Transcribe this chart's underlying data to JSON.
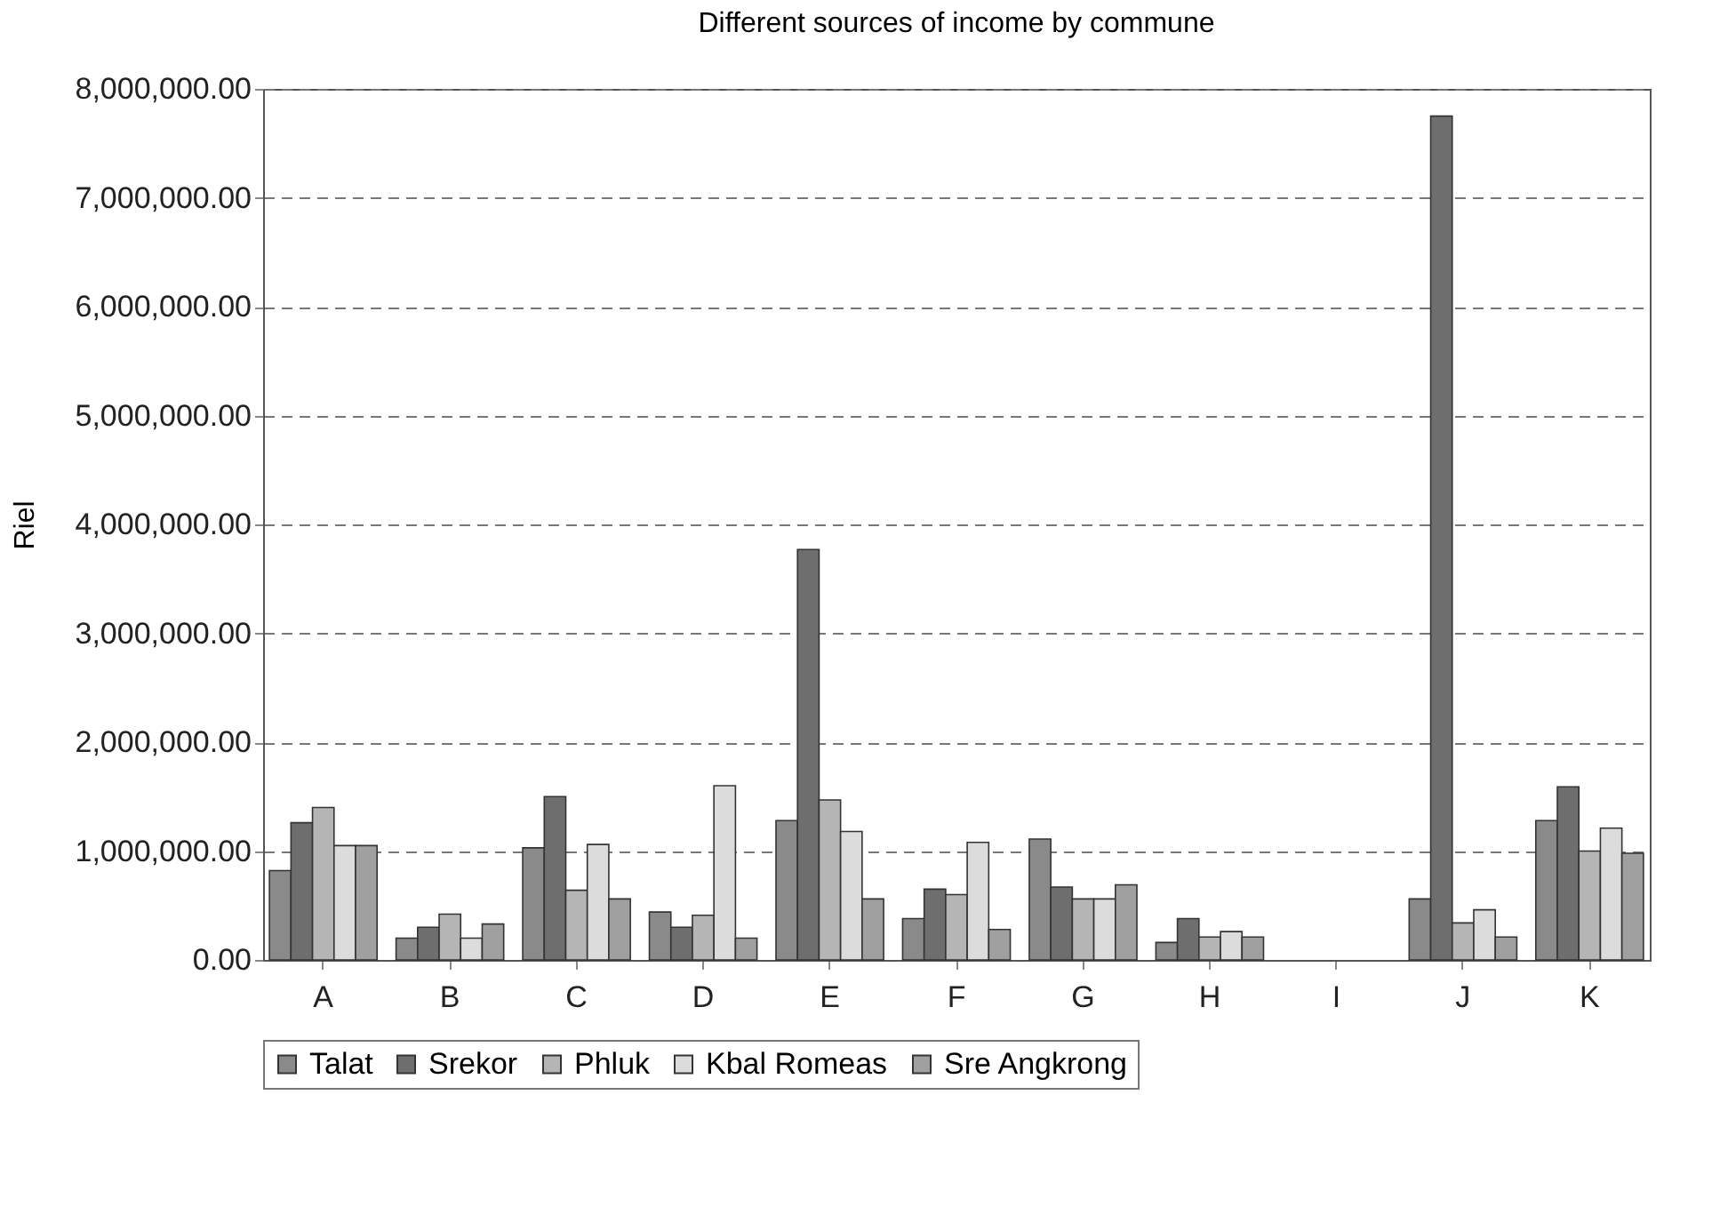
{
  "chart_data": {
    "type": "bar",
    "title": "Different sources of income by commune",
    "ylabel": "Riel",
    "categories": [
      "A",
      "B",
      "C",
      "D",
      "E",
      "F",
      "G",
      "H",
      "I",
      "J",
      "K"
    ],
    "series": [
      {
        "name": "Talat",
        "color": "#8a8a8a",
        "values": [
          820000,
          200000,
          1030000,
          440000,
          1280000,
          380000,
          1110000,
          160000,
          0,
          560000,
          1280000
        ]
      },
      {
        "name": "Srekor",
        "color": "#6e6e6e",
        "values": [
          1260000,
          300000,
          1500000,
          300000,
          3770000,
          650000,
          670000,
          380000,
          0,
          7750000,
          1590000
        ]
      },
      {
        "name": "Phluk",
        "color": "#b5b5b5",
        "values": [
          1400000,
          420000,
          640000,
          410000,
          1470000,
          600000,
          560000,
          210000,
          0,
          340000,
          1000000
        ]
      },
      {
        "name": "Kbal Romeas",
        "color": "#dcdcdc",
        "values": [
          1050000,
          200000,
          1060000,
          1600000,
          1180000,
          1080000,
          560000,
          260000,
          0,
          460000,
          1210000
        ]
      },
      {
        "name": "Sre Angkrong",
        "color": "#a0a0a0",
        "values": [
          1050000,
          330000,
          560000,
          200000,
          560000,
          280000,
          690000,
          210000,
          0,
          210000,
          980000
        ]
      }
    ],
    "ylim": [
      0,
      8000000
    ],
    "yticks": [
      {
        "value": 0,
        "label": "0.00"
      },
      {
        "value": 1000000,
        "label": "1,000,000.00"
      },
      {
        "value": 2000000,
        "label": "2,000,000.00"
      },
      {
        "value": 3000000,
        "label": "3,000,000.00"
      },
      {
        "value": 4000000,
        "label": "4,000,000.00"
      },
      {
        "value": 5000000,
        "label": "5,000,000.00"
      },
      {
        "value": 6000000,
        "label": "6,000,000.00"
      },
      {
        "value": 7000000,
        "label": "7,000,000.00"
      },
      {
        "value": 8000000,
        "label": "8,000,000.00"
      }
    ],
    "grid": "y",
    "legend": "bottom"
  }
}
